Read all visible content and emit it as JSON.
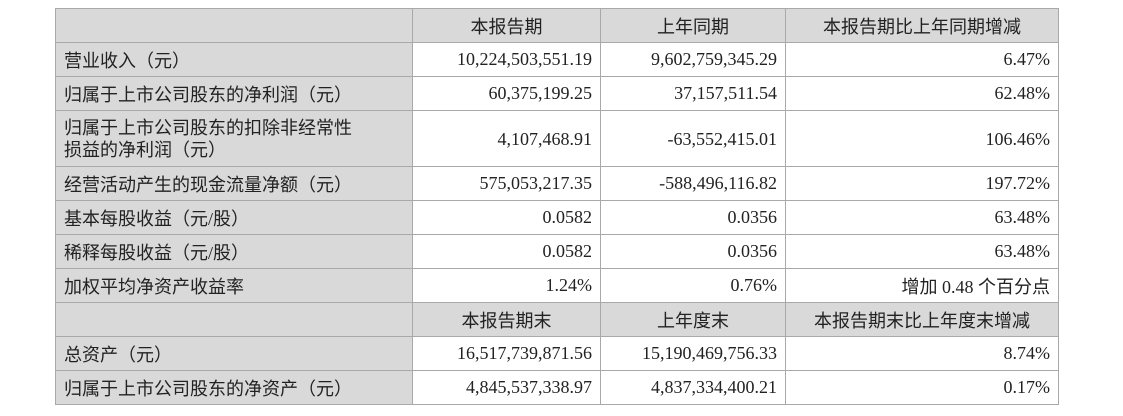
{
  "header1": [
    "",
    "本报告期",
    "上年同期",
    "本报告期比上年同期增减"
  ],
  "rows1": [
    {
      "label": "营业收入（元）",
      "current": "10,224,503,551.19",
      "prior": "9,602,759,345.29",
      "change": "6.47%"
    },
    {
      "label": "归属于上市公司股东的净利润（元）",
      "current": "60,375,199.25",
      "prior": "37,157,511.54",
      "change": "62.48%"
    },
    {
      "label_line1": "归属于上市公司股东的扣除非经常性",
      "label_line2": "损益的净利润（元）",
      "current": "4,107,468.91",
      "prior": "-63,552,415.01",
      "change": "106.46%"
    },
    {
      "label": "经营活动产生的现金流量净额（元）",
      "current": "575,053,217.35",
      "prior": "-588,496,116.82",
      "change": "197.72%"
    },
    {
      "label": "基本每股收益（元/股）",
      "current": "0.0582",
      "prior": "0.0356",
      "change": "63.48%"
    },
    {
      "label": "稀释每股收益（元/股）",
      "current": "0.0582",
      "prior": "0.0356",
      "change": "63.48%"
    },
    {
      "label": "加权平均净资产收益率",
      "current": "1.24%",
      "prior": "0.76%",
      "change": "增加 0.48 个百分点"
    }
  ],
  "header2": [
    "",
    "本报告期末",
    "上年度末",
    "本报告期末比上年度末增减"
  ],
  "rows2": [
    {
      "label": "总资产（元）",
      "current": "16,517,739,871.56",
      "prior": "15,190,469,756.33",
      "change": "8.74%"
    },
    {
      "label": "归属于上市公司股东的净资产（元）",
      "current": "4,845,537,338.97",
      "prior": "4,837,334,400.21",
      "change": "0.17%"
    }
  ]
}
